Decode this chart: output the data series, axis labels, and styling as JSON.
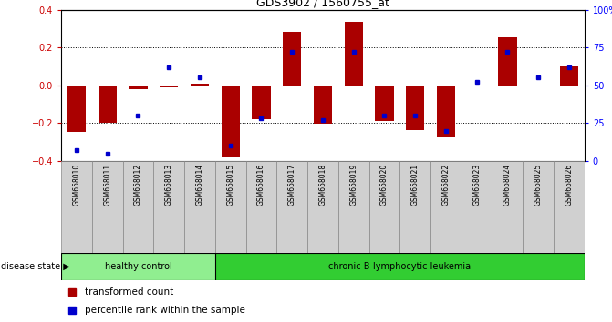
{
  "title": "GDS3902 / 1560755_at",
  "samples": [
    "GSM658010",
    "GSM658011",
    "GSM658012",
    "GSM658013",
    "GSM658014",
    "GSM658015",
    "GSM658016",
    "GSM658017",
    "GSM658018",
    "GSM658019",
    "GSM658020",
    "GSM658021",
    "GSM658022",
    "GSM658023",
    "GSM658024",
    "GSM658025",
    "GSM658026"
  ],
  "red_bars": [
    -0.245,
    -0.2,
    -0.02,
    -0.01,
    0.01,
    -0.38,
    -0.18,
    0.285,
    -0.205,
    0.335,
    -0.19,
    -0.235,
    -0.275,
    -0.005,
    0.255,
    -0.005,
    0.1
  ],
  "blue_dots": [
    7,
    5,
    30,
    62,
    55,
    10,
    28,
    72,
    27,
    72,
    30,
    30,
    20,
    52,
    72,
    55,
    62
  ],
  "healthy_count": 5,
  "disease_label1": "healthy control",
  "disease_label2": "chronic B-lymphocytic leukemia",
  "disease_state_label": "disease state",
  "legend1": "transformed count",
  "legend2": "percentile rank within the sample",
  "ylim_left": [
    -0.4,
    0.4
  ],
  "ylim_right": [
    0,
    100
  ],
  "yticks_left": [
    -0.4,
    -0.2,
    0,
    0.2,
    0.4
  ],
  "yticks_right": [
    0,
    25,
    50,
    75,
    100
  ],
  "red_color": "#AA0000",
  "blue_color": "#0000CC",
  "healthy_bg": "#90EE90",
  "leukemia_bg": "#32CD32"
}
